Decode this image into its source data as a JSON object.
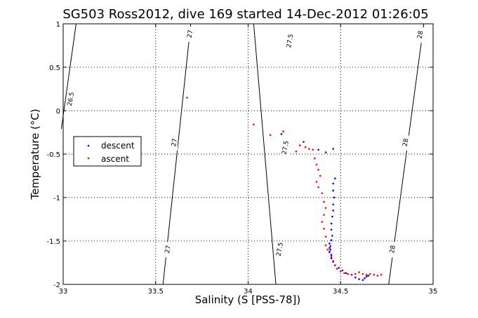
{
  "chart_data": {
    "type": "scatter",
    "title": "SG503 Ross2012, dive 169 started 14-Dec-2012 01:26:05",
    "xlabel": "Salinity (S [PSS-78])",
    "ylabel": "Temperature (°C)",
    "xlim": [
      33,
      35
    ],
    "ylim": [
      -2,
      1
    ],
    "x_ticks": [
      "33",
      "33.5",
      "34",
      "34.5",
      "35"
    ],
    "y_ticks": [
      "-2",
      "-1.5",
      "-1",
      "-0.5",
      "0",
      "0.5",
      "1"
    ],
    "grid": true,
    "legend_position": "left",
    "density_contours": [
      {
        "label": "26.5",
        "points": [
          [
            33.07,
            1.0
          ],
          [
            32.99,
            -0.21
          ]
        ]
      },
      {
        "label": "27",
        "points": [
          [
            33.69,
            1.0
          ],
          [
            33.54,
            -2.0
          ]
        ]
      },
      {
        "label": "27.5",
        "points": [
          [
            34.03,
            1.0
          ],
          [
            34.15,
            -2.0
          ]
        ]
      },
      {
        "label": "28",
        "points": [
          [
            34.95,
            1.0
          ],
          [
            34.76,
            -2.0
          ]
        ]
      }
    ],
    "contour_label_positions": [
      {
        "label": "26.5",
        "x": 33.04,
        "y": 0.13
      },
      {
        "label": "27",
        "x": 33.685,
        "y": 0.88
      },
      {
        "label": "27",
        "x": 33.6,
        "y": -0.37
      },
      {
        "label": "27",
        "x": 33.565,
        "y": -1.6
      },
      {
        "label": "27.5",
        "x": 34.225,
        "y": 0.8
      },
      {
        "label": "27.5",
        "x": 34.2,
        "y": -0.43
      },
      {
        "label": "27.5",
        "x": 34.17,
        "y": -1.6
      },
      {
        "label": "28",
        "x": 34.93,
        "y": 0.87
      },
      {
        "label": "28",
        "x": 34.85,
        "y": -0.37
      },
      {
        "label": "28",
        "x": 34.78,
        "y": -1.6
      }
    ],
    "series": [
      {
        "name": "descent",
        "color": "#0000ff",
        "points": [
          [
            34.18,
            -0.27
          ],
          [
            34.3,
            -0.36
          ],
          [
            34.38,
            -0.45
          ],
          [
            34.42,
            -0.48
          ],
          [
            34.46,
            -0.44
          ],
          [
            34.47,
            -0.78
          ],
          [
            34.46,
            -0.84
          ],
          [
            34.46,
            -0.92
          ],
          [
            34.465,
            -1.0
          ],
          [
            34.46,
            -1.08
          ],
          [
            34.46,
            -1.15
          ],
          [
            34.455,
            -1.22
          ],
          [
            34.45,
            -1.3
          ],
          [
            34.45,
            -1.37
          ],
          [
            34.455,
            -1.44
          ],
          [
            34.45,
            -1.49
          ],
          [
            34.44,
            -1.53
          ],
          [
            34.445,
            -1.56
          ],
          [
            34.44,
            -1.58
          ],
          [
            34.445,
            -1.6
          ],
          [
            34.44,
            -1.63
          ],
          [
            34.45,
            -1.66
          ],
          [
            34.45,
            -1.7
          ],
          [
            34.46,
            -1.74
          ],
          [
            34.47,
            -1.78
          ],
          [
            34.49,
            -1.81
          ],
          [
            34.51,
            -1.84
          ],
          [
            34.53,
            -1.87
          ],
          [
            34.56,
            -1.89
          ],
          [
            34.58,
            -1.92
          ],
          [
            34.6,
            -1.94
          ],
          [
            34.62,
            -1.95
          ],
          [
            34.63,
            -1.93
          ],
          [
            34.64,
            -1.91
          ],
          [
            34.65,
            -1.9
          ]
        ]
      },
      {
        "name": "ascent",
        "color": "#ff0000",
        "points": [
          [
            33.67,
            0.15
          ],
          [
            34.03,
            -0.16
          ],
          [
            34.12,
            -0.28
          ],
          [
            34.19,
            -0.24
          ],
          [
            34.26,
            -0.47
          ],
          [
            34.28,
            -0.4
          ],
          [
            34.31,
            -0.42
          ],
          [
            34.33,
            -0.44
          ],
          [
            34.35,
            -0.45
          ],
          [
            34.36,
            -0.55
          ],
          [
            34.37,
            -0.62
          ],
          [
            34.38,
            -0.68
          ],
          [
            34.39,
            -0.75
          ],
          [
            34.37,
            -0.82
          ],
          [
            34.38,
            -0.88
          ],
          [
            34.4,
            -0.95
          ],
          [
            34.41,
            -1.05
          ],
          [
            34.42,
            -1.12
          ],
          [
            34.41,
            -1.2
          ],
          [
            34.4,
            -1.28
          ],
          [
            34.41,
            -1.36
          ],
          [
            34.42,
            -1.45
          ],
          [
            34.42,
            -1.55
          ],
          [
            34.43,
            -1.6
          ],
          [
            34.44,
            -1.62
          ],
          [
            34.45,
            -1.68
          ],
          [
            34.46,
            -1.73
          ],
          [
            34.47,
            -1.78
          ],
          [
            34.48,
            -1.82
          ],
          [
            34.5,
            -1.85
          ],
          [
            34.52,
            -1.87
          ],
          [
            34.54,
            -1.88
          ],
          [
            34.56,
            -1.89
          ],
          [
            34.58,
            -1.88
          ],
          [
            34.6,
            -1.86
          ],
          [
            34.62,
            -1.88
          ],
          [
            34.64,
            -1.89
          ],
          [
            34.66,
            -1.88
          ],
          [
            34.68,
            -1.89
          ],
          [
            34.7,
            -1.9
          ],
          [
            34.72,
            -1.89
          ]
        ]
      }
    ]
  }
}
